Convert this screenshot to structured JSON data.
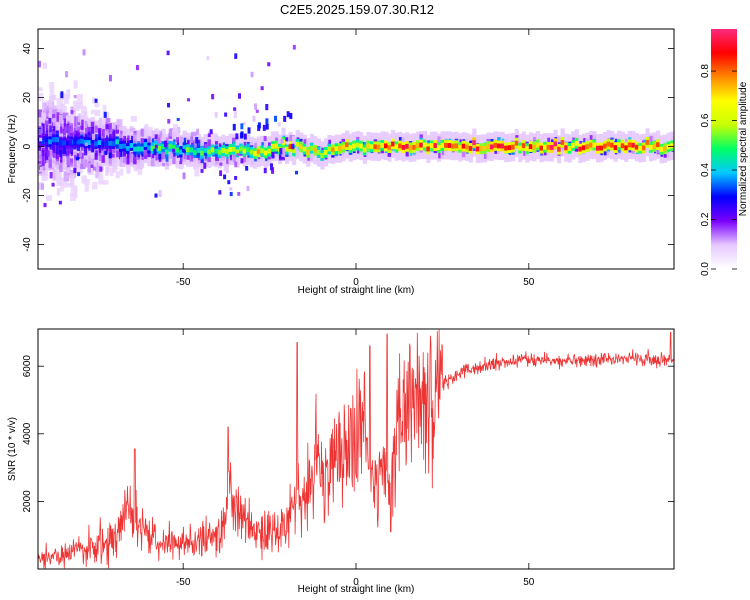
{
  "title": "C2E5.2025.159.07.30.R12",
  "chart_data": [
    {
      "type": "heatmap",
      "xlabel": "Height of straight line (km)",
      "ylabel": "Frequency (Hz)",
      "xlim": [
        -92,
        92
      ],
      "ylim": [
        -50,
        48
      ],
      "xticks": [
        -50,
        0,
        50
      ],
      "yticks": [
        -40,
        -20,
        0,
        20,
        40
      ],
      "colorbar": {
        "label": "Normalized spectral amplitude",
        "range": [
          0,
          0.97
        ],
        "ticks": [
          0.0,
          0.2,
          0.4,
          0.6,
          0.8
        ],
        "tick_labels": [
          "0.0",
          "0.2",
          "0.4",
          "0.6",
          "0.8"
        ],
        "colormap": [
          "#ffffff",
          "#e6c8ff",
          "#7a00ff",
          "#0000ff",
          "#00c8ff",
          "#00ff66",
          "#c8ff00",
          "#ffff00",
          "#ff8800",
          "#ff0000",
          "#ff2a7f"
        ]
      },
      "ridge_profile": [
        {
          "x": -90,
          "center_hz": 2,
          "spread_hz": 28,
          "peak": 0.35
        },
        {
          "x": -80,
          "center_hz": 2,
          "spread_hz": 22,
          "peak": 0.35
        },
        {
          "x": -70,
          "center_hz": 1,
          "spread_hz": 14,
          "peak": 0.4
        },
        {
          "x": -60,
          "center_hz": 0,
          "spread_hz": 10,
          "peak": 0.5
        },
        {
          "x": -50,
          "center_hz": -1,
          "spread_hz": 8,
          "peak": 0.55
        },
        {
          "x": -40,
          "center_hz": -2,
          "spread_hz": 6,
          "peak": 0.6
        },
        {
          "x": -30,
          "center_hz": -2,
          "spread_hz": 5,
          "peak": 0.7
        },
        {
          "x": -20,
          "center_hz": 0,
          "spread_hz": 4,
          "peak": 0.8
        },
        {
          "x": -10,
          "center_hz": -2,
          "spread_hz": 3,
          "peak": 0.75
        },
        {
          "x": 0,
          "center_hz": 0,
          "spread_hz": 3,
          "peak": 0.8
        },
        {
          "x": 20,
          "center_hz": 0,
          "spread_hz": 3,
          "peak": 0.9
        },
        {
          "x": 50,
          "center_hz": 0,
          "spread_hz": 3,
          "peak": 0.9
        },
        {
          "x": 90,
          "center_hz": 0,
          "spread_hz": 3,
          "peak": 0.85
        }
      ]
    },
    {
      "type": "line",
      "xlabel": "Height of straight line (km)",
      "ylabel": "SNR (10 * v/v)",
      "xlim": [
        -92,
        92
      ],
      "ylim": [
        0,
        7100
      ],
      "xticks": [
        -50,
        0,
        50
      ],
      "yticks": [
        2000,
        4000,
        6000
      ],
      "color": "#ee3333",
      "x": [
        -92,
        -85,
        -80,
        -75,
        -70,
        -66,
        -60,
        -55,
        -50,
        -45,
        -40,
        -36,
        -30,
        -25,
        -20,
        -17,
        -15,
        -12,
        -10,
        -5,
        0,
        3,
        5,
        8,
        10,
        12,
        15,
        20,
        25,
        30,
        40,
        50,
        60,
        70,
        80,
        92
      ],
      "y": [
        300,
        400,
        600,
        700,
        800,
        1800,
        1000,
        700,
        800,
        900,
        1000,
        2200,
        1100,
        1000,
        1400,
        2400,
        2000,
        3000,
        3000,
        3300,
        3900,
        4200,
        2500,
        2800,
        1800,
        4300,
        4700,
        5000,
        5500,
        5800,
        6100,
        6200,
        6150,
        6200,
        6200,
        6150
      ],
      "spikes": [
        {
          "x": -64,
          "y": 3550
        },
        {
          "x": -37,
          "y": 4200
        },
        {
          "x": -17,
          "y": 6700
        },
        {
          "x": 9,
          "y": 6950
        },
        {
          "x": 10,
          "y": 1100
        },
        {
          "x": 4,
          "y": 6600
        },
        {
          "x": 91,
          "y": 7000
        }
      ]
    }
  ]
}
